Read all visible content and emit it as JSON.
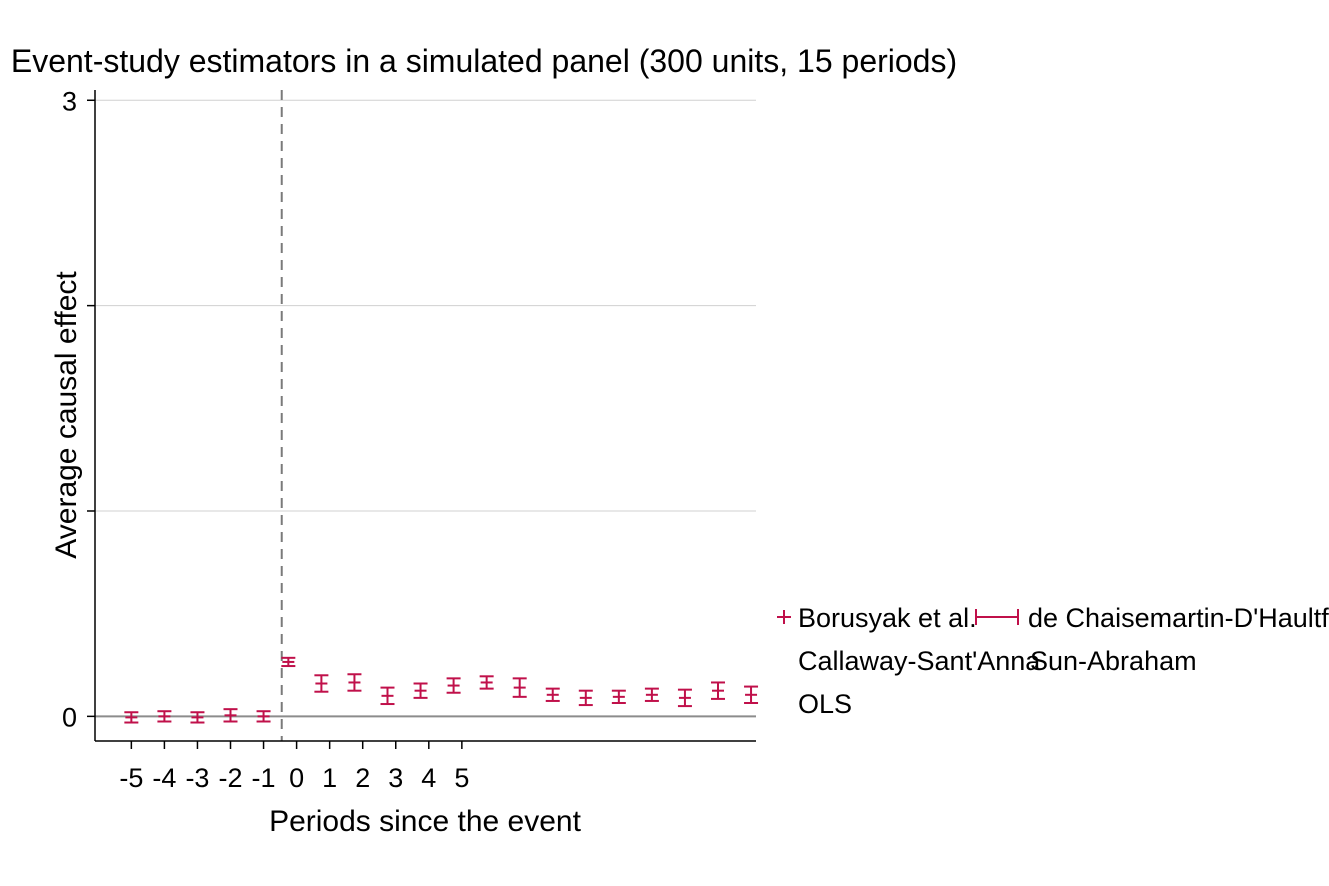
{
  "chart_data": {
    "type": "scatter",
    "title": "Event-study estimators in a simulated panel (300 units, 15 periods)",
    "xlabel": "Periods since the event",
    "ylabel": "Average causal effect",
    "xlim": [
      -6.1,
      13.9
    ],
    "ylim": [
      -0.12,
      3.05
    ],
    "xticks": [
      "-5",
      "-4",
      "-3",
      "-2",
      "-1",
      "0",
      "1",
      "2",
      "3",
      "4",
      "5"
    ],
    "xtick_values": [
      -5,
      -4,
      -3,
      -2,
      -1,
      0,
      1,
      2,
      3,
      4,
      5
    ],
    "yticks": [
      "0",
      "",
      "",
      "3"
    ],
    "ytick_values": [
      0,
      1,
      2,
      3
    ],
    "event_line_x": -0.45,
    "grid": true,
    "legend": {
      "position": "right",
      "entries": [
        "Borusyak et al.",
        "de Chaisemartin-D'Haultfoeuille",
        "Callaway-Sant'Anna",
        "Sun-Abraham",
        "OLS"
      ]
    },
    "series": [
      {
        "name": "Borusyak et al.",
        "color": "#c0104a",
        "points": [
          {
            "x": -5,
            "y": -0.005,
            "lo": -0.03,
            "hi": 0.02
          },
          {
            "x": -4,
            "y": 0.0,
            "lo": -0.025,
            "hi": 0.025
          },
          {
            "x": -3,
            "y": -0.005,
            "lo": -0.03,
            "hi": 0.02
          },
          {
            "x": -2,
            "y": 0.005,
            "lo": -0.025,
            "hi": 0.035
          },
          {
            "x": -1,
            "y": 0.0,
            "lo": -0.025,
            "hi": 0.025
          },
          {
            "x": -0.25,
            "y": 0.265,
            "lo": 0.245,
            "hi": 0.285
          },
          {
            "x": 0.75,
            "y": 0.16,
            "lo": 0.12,
            "hi": 0.2
          },
          {
            "x": 1.75,
            "y": 0.165,
            "lo": 0.125,
            "hi": 0.205
          },
          {
            "x": 2.75,
            "y": 0.1,
            "lo": 0.06,
            "hi": 0.14
          },
          {
            "x": 3.75,
            "y": 0.125,
            "lo": 0.09,
            "hi": 0.16
          },
          {
            "x": 4.75,
            "y": 0.15,
            "lo": 0.115,
            "hi": 0.185
          },
          {
            "x": 5.75,
            "y": 0.165,
            "lo": 0.135,
            "hi": 0.195
          },
          {
            "x": 6.75,
            "y": 0.14,
            "lo": 0.095,
            "hi": 0.185
          },
          {
            "x": 7.75,
            "y": 0.105,
            "lo": 0.075,
            "hi": 0.135
          },
          {
            "x": 8.75,
            "y": 0.09,
            "lo": 0.055,
            "hi": 0.125
          },
          {
            "x": 9.75,
            "y": 0.095,
            "lo": 0.065,
            "hi": 0.125
          },
          {
            "x": 10.75,
            "y": 0.105,
            "lo": 0.075,
            "hi": 0.135
          },
          {
            "x": 11.75,
            "y": 0.09,
            "lo": 0.05,
            "hi": 0.13
          },
          {
            "x": 12.75,
            "y": 0.125,
            "lo": 0.085,
            "hi": 0.165
          },
          {
            "x": 13.75,
            "y": 0.105,
            "lo": 0.065,
            "hi": 0.145
          }
        ]
      }
    ]
  },
  "colors": {
    "series": "#c0104a",
    "axis": "#000000",
    "grid": "#d0d0d0",
    "zero_line": "#8c8c8c",
    "event_line": "#7a7a7a"
  }
}
